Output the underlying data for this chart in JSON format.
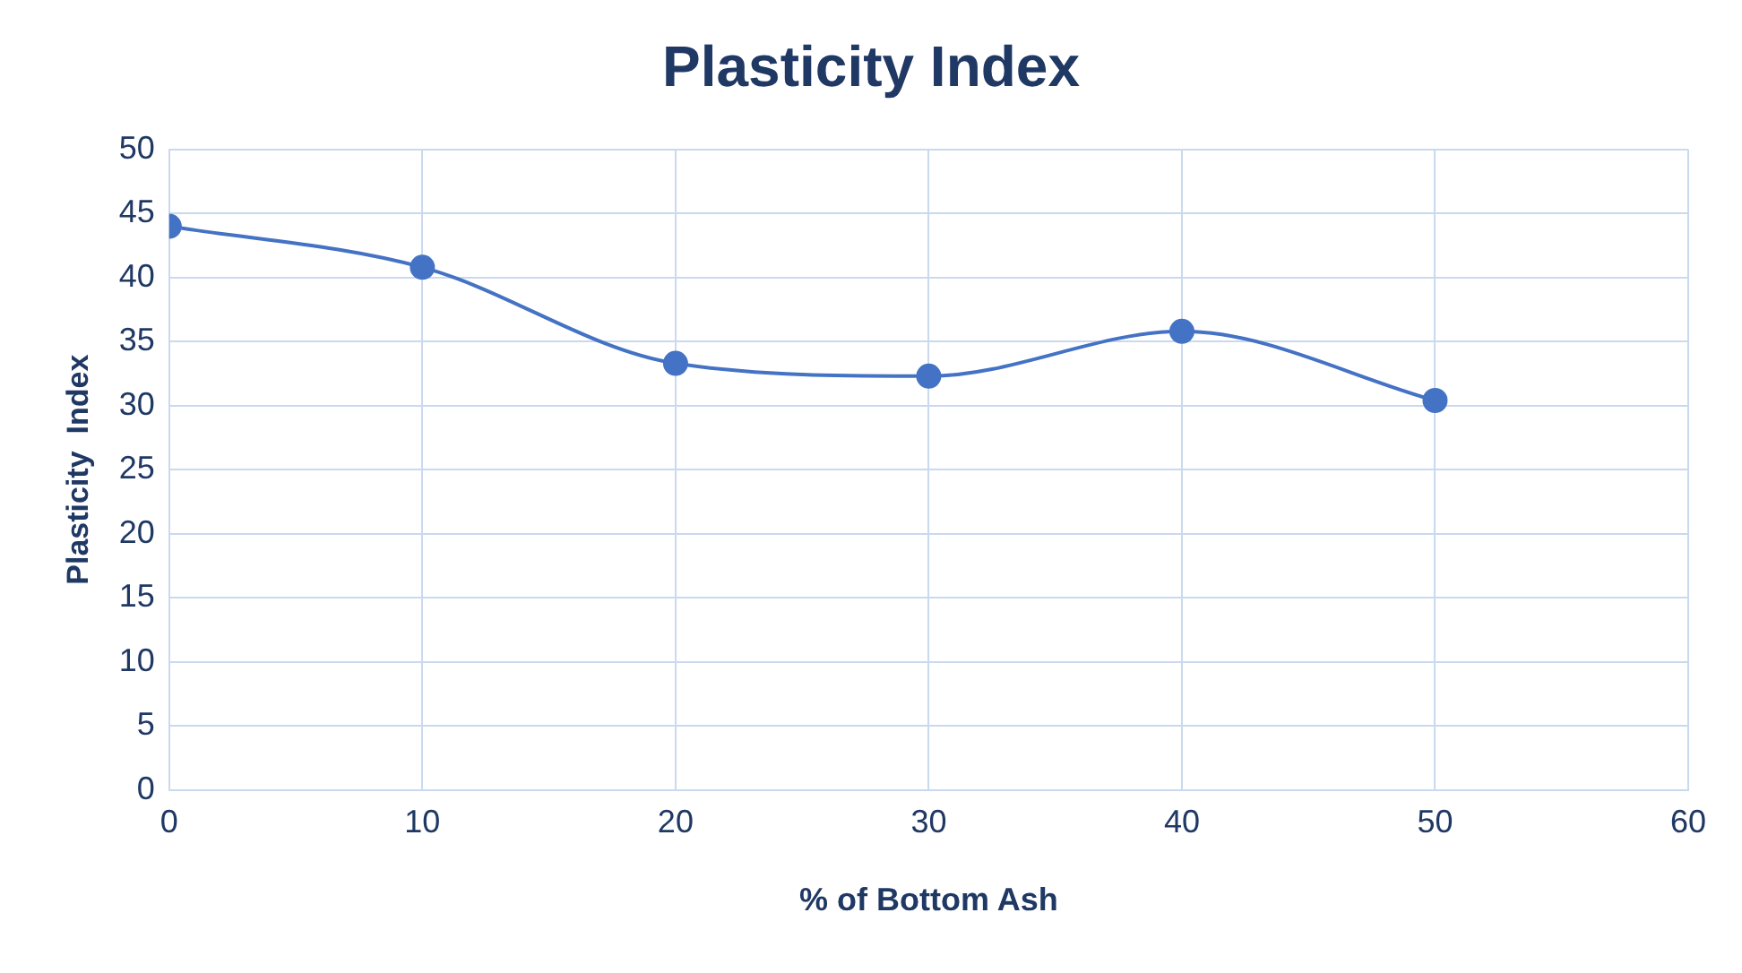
{
  "chart_data": {
    "type": "line",
    "title": "Plasticity Index",
    "xlabel": "% of Bottom Ash",
    "ylabel": "Plasticity  Index",
    "x": [
      0,
      10,
      20,
      30,
      40,
      50
    ],
    "series": [
      {
        "color": "#4472c4",
        "values": [
          44,
          40.8,
          33.3,
          32.3,
          35.8,
          30.4
        ]
      }
    ],
    "xlim": [
      0,
      60
    ],
    "xticks": [
      0,
      10,
      20,
      30,
      40,
      50,
      60
    ],
    "ylim": [
      0,
      50
    ],
    "yticks": [
      0,
      5,
      10,
      15,
      20,
      25,
      30,
      35,
      40,
      45,
      50
    ],
    "grid": true,
    "legend": false,
    "marker": "circle",
    "line_style": "solid"
  }
}
